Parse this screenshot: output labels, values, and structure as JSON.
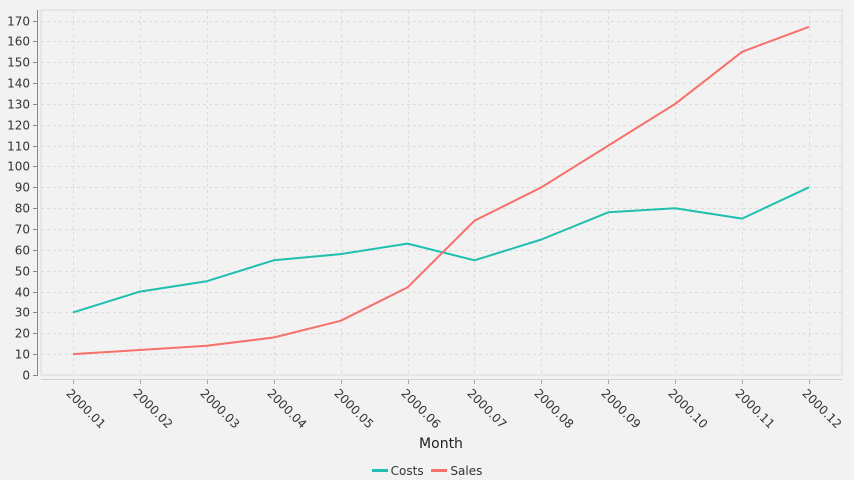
{
  "chart_data": {
    "type": "line",
    "title": "",
    "xlabel": "Month",
    "ylabel": "",
    "categories": [
      "2000.01",
      "2000.02",
      "2000.03",
      "2000.04",
      "2000.05",
      "2000.06",
      "2000.07",
      "2000.08",
      "2000.09",
      "2000.10",
      "2000.11",
      "2000.12"
    ],
    "series": [
      {
        "name": "Costs",
        "color": "#1fbfb0",
        "values": [
          30,
          40,
          45,
          55,
          58,
          63,
          55,
          65,
          78,
          80,
          75,
          90
        ]
      },
      {
        "name": "Sales",
        "color": "#f8706a",
        "values": [
          10,
          12,
          14,
          18,
          26,
          42,
          74,
          90,
          110,
          130,
          155,
          167
        ]
      }
    ],
    "ylim": [
      0,
      170
    ],
    "yticks": [
      0,
      10,
      20,
      30,
      40,
      50,
      60,
      70,
      80,
      90,
      100,
      110,
      120,
      130,
      140,
      150,
      160,
      170
    ],
    "grid": true,
    "legend_position": "bottom"
  },
  "legend": {
    "items": [
      {
        "label": "Costs",
        "color": "#1fbfb0"
      },
      {
        "label": "Sales",
        "color": "#f8706a"
      }
    ]
  }
}
